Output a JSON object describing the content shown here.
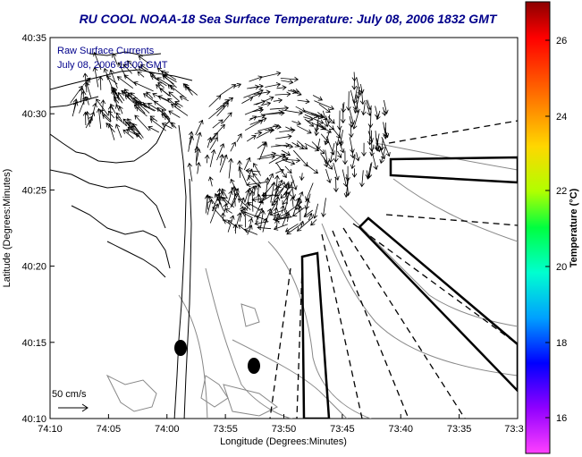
{
  "title": "RU COOL  NOAA-18  Sea Surface Temperature:  July 08, 2006 1832 GMT",
  "overlay": {
    "line1": "Raw Surface Currents",
    "line2": "July 08, 2006 18:00 GMT"
  },
  "x_axis": {
    "label": "Longitude (Degrees:Minutes)",
    "ticks": [
      "74:10",
      "74:05",
      "74:00",
      "73:55",
      "73:50",
      "73:45",
      "73:40",
      "73:35",
      "73:3"
    ]
  },
  "y_axis": {
    "label": "Latitude (Degrees:Minutes)",
    "ticks": [
      "40:35",
      "40:30",
      "40:25",
      "40:20",
      "40:15",
      "40:10"
    ]
  },
  "scale_vector": {
    "label": "50 cm/s"
  },
  "colorbar": {
    "label": "Temperature (°C)",
    "ticks": [
      "26",
      "24",
      "22",
      "20",
      "18",
      "16"
    ]
  },
  "colors": {
    "title": "#00008b",
    "overlay_text": "#00008b",
    "axis": "#000000",
    "land_outline": "#000000",
    "bathymetry": "#888888"
  }
}
